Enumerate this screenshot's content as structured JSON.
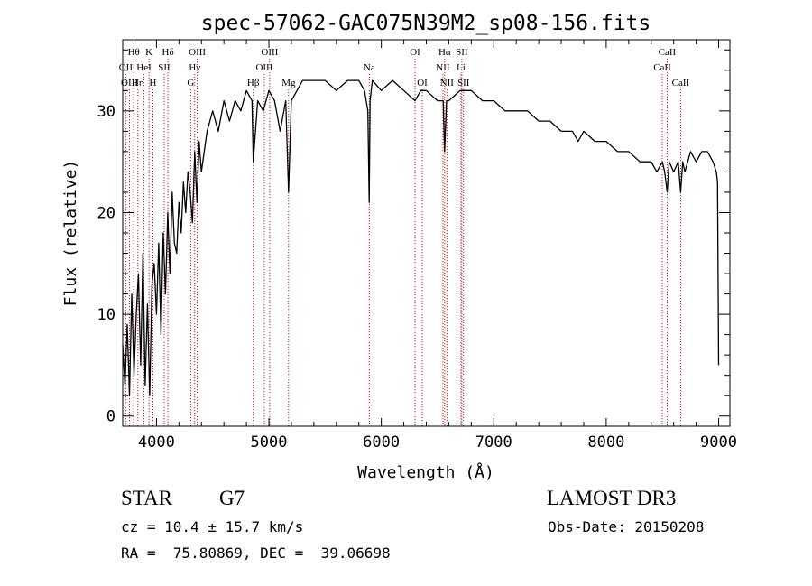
{
  "chart_data": {
    "type": "line",
    "title": "spec-57062-GAC075N39M2_sp08-156.fits",
    "xlabel": "Wavelength (Å)",
    "ylabel": "Flux (relative)",
    "xlim": [
      3700,
      9100
    ],
    "ylim": [
      -1,
      37
    ],
    "xticks": [
      4000,
      5000,
      6000,
      7000,
      8000,
      9000
    ],
    "yticks": [
      0,
      10,
      20,
      30
    ],
    "series": [
      {
        "name": "flux",
        "x": [
          3700,
          3720,
          3740,
          3760,
          3780,
          3800,
          3820,
          3840,
          3860,
          3880,
          3900,
          3920,
          3940,
          3960,
          3980,
          4000,
          4020,
          4040,
          4060,
          4080,
          4100,
          4120,
          4140,
          4160,
          4180,
          4200,
          4220,
          4240,
          4260,
          4280,
          4300,
          4320,
          4340,
          4360,
          4380,
          4400,
          4450,
          4500,
          4550,
          4600,
          4650,
          4700,
          4750,
          4800,
          4850,
          4861,
          4900,
          4950,
          5000,
          5050,
          5100,
          5150,
          5175,
          5200,
          5250,
          5300,
          5400,
          5500,
          5600,
          5700,
          5800,
          5850,
          5880,
          5892,
          5900,
          5920,
          6000,
          6100,
          6200,
          6300,
          6350,
          6400,
          6500,
          6550,
          6563,
          6580,
          6600,
          6700,
          6800,
          6900,
          7000,
          7100,
          7200,
          7300,
          7400,
          7500,
          7600,
          7700,
          7750,
          7800,
          7900,
          8000,
          8100,
          8200,
          8300,
          8400,
          8450,
          8500,
          8520,
          8542,
          8560,
          8600,
          8640,
          8662,
          8680,
          8700,
          8750,
          8800,
          8850,
          8900,
          8950,
          8980,
          8990,
          9000
        ],
        "values": [
          7,
          3,
          9,
          2,
          12,
          4,
          10,
          14,
          5,
          16,
          3,
          11,
          2,
          13,
          15,
          10,
          17,
          8,
          18,
          12,
          20,
          14,
          22,
          17,
          16,
          21,
          18,
          23,
          20,
          24,
          22,
          19,
          26,
          21,
          27,
          24,
          28,
          30,
          28,
          31,
          29,
          31,
          30,
          32,
          31,
          25,
          31,
          30,
          32,
          31,
          28,
          31,
          22,
          31,
          32,
          33,
          33,
          33,
          32,
          33,
          33,
          32,
          30,
          21,
          31,
          33,
          32,
          33,
          32,
          31,
          32,
          32,
          31,
          31,
          26,
          31,
          31,
          32,
          32,
          31,
          31,
          30,
          30,
          30,
          29,
          29,
          28,
          28,
          27,
          28,
          27,
          27,
          26,
          26,
          25,
          25,
          24,
          25,
          24,
          22,
          25,
          24,
          25,
          22,
          25,
          24,
          26,
          25,
          26,
          26,
          25,
          24,
          23,
          5
        ]
      }
    ],
    "line_markers": [
      {
        "label": "Hθ",
        "wavelength": 3798,
        "row": 1
      },
      {
        "label": "OII",
        "wavelength": 3727,
        "row": 2
      },
      {
        "label": "OIII",
        "wavelength": 3760,
        "row": 3
      },
      {
        "label": "Hη",
        "wavelength": 3835,
        "row": 3
      },
      {
        "label": "HeI",
        "wavelength": 3889,
        "row": 2
      },
      {
        "label": "K",
        "wavelength": 3934,
        "row": 1
      },
      {
        "label": "H",
        "wavelength": 3969,
        "row": 3
      },
      {
        "label": "SII",
        "wavelength": 4069,
        "row": 2
      },
      {
        "label": "Hδ",
        "wavelength": 4102,
        "row": 1
      },
      {
        "label": "G",
        "wavelength": 4305,
        "row": 3
      },
      {
        "label": "Hγ",
        "wavelength": 4340,
        "row": 2
      },
      {
        "label": "OIII",
        "wavelength": 4363,
        "row": 1
      },
      {
        "label": "Hβ",
        "wavelength": 4861,
        "row": 3
      },
      {
        "label": "OIII",
        "wavelength": 4959,
        "row": 2
      },
      {
        "label": "OIII",
        "wavelength": 5007,
        "row": 1
      },
      {
        "label": "Mg",
        "wavelength": 5175,
        "row": 3
      },
      {
        "label": "Na",
        "wavelength": 5893,
        "row": 2
      },
      {
        "label": "OI",
        "wavelength": 6300,
        "row": 1
      },
      {
        "label": "OI",
        "wavelength": 6364,
        "row": 3
      },
      {
        "label": "NII",
        "wavelength": 6548,
        "row": 2
      },
      {
        "label": "Hα",
        "wavelength": 6563,
        "row": 1
      },
      {
        "label": "NII",
        "wavelength": 6583,
        "row": 3
      },
      {
        "label": "Li",
        "wavelength": 6708,
        "row": 2
      },
      {
        "label": "SII",
        "wavelength": 6716,
        "row": 1
      },
      {
        "label": "SII",
        "wavelength": 6731,
        "row": 3
      },
      {
        "label": "CaII",
        "wavelength": 8498,
        "row": 2
      },
      {
        "label": "CaII",
        "wavelength": 8542,
        "row": 1
      },
      {
        "label": "CaII",
        "wavelength": 8662,
        "row": 3
      }
    ],
    "colors": {
      "spectrum": "#000000",
      "markers": "#b22222",
      "axes": "#000000"
    }
  },
  "info": {
    "object_class": "STAR",
    "subclass": "G7",
    "survey": "LAMOST DR3",
    "redshift": "cz = 10.4 ± 15.7 km/s",
    "obs_date": "Obs-Date: 20150208",
    "coords": "RA =  75.80869, DEC =  39.06698"
  }
}
